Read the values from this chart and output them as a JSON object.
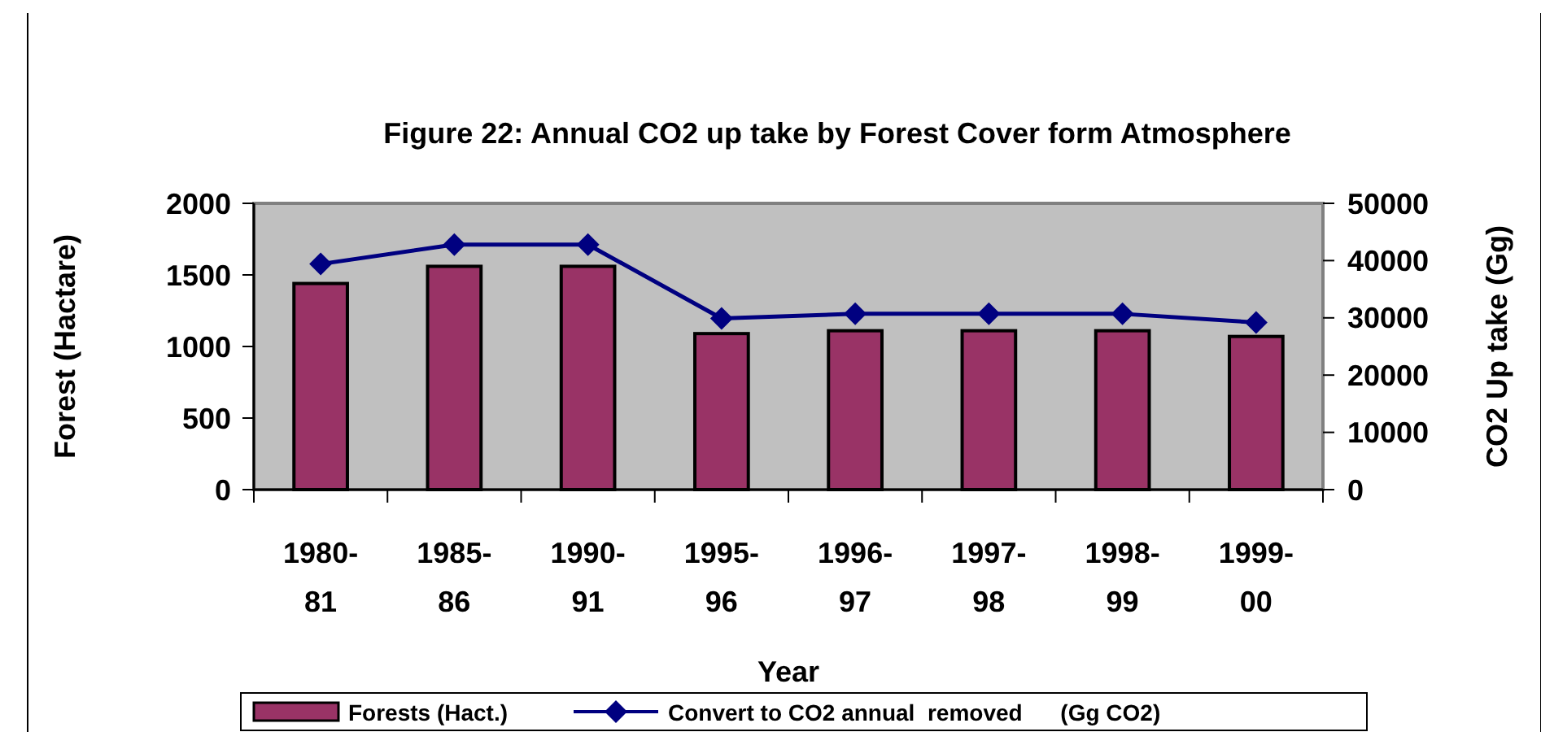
{
  "chart_data": {
    "type": "bar",
    "title": "Figure 22:  Annual CO2 up take by Forest Cover form Atmosphere",
    "xlabel": "Year",
    "ylabel": "Forest (Hactare)",
    "y2label": "CO2 Up take (Gg)",
    "categories": [
      "1980-81",
      "1985-86",
      "1990-91",
      "1995-96",
      "1996-97",
      "1997-98",
      "1998-99",
      "1999-00"
    ],
    "series": [
      {
        "name": "Forests (Hact.)",
        "color": "#993366",
        "values": [
          1440,
          1560,
          1560,
          1090,
          1110,
          1110,
          1110,
          1070
        ]
      },
      {
        "name": "Convert to CO2 annual  removed      (Gg CO2)",
        "type": "line",
        "axis": "y2",
        "color": "#000080",
        "marker": "diamond",
        "values": [
          39400,
          42800,
          42800,
          29900,
          30700,
          30700,
          30700,
          29200
        ]
      }
    ],
    "ylim": [
      0,
      2000
    ],
    "yticks": [
      0,
      500,
      1000,
      1500,
      2000
    ],
    "y2lim": [
      0,
      50000
    ],
    "y2ticks": [
      0,
      10000,
      20000,
      30000,
      40000,
      50000
    ],
    "grid": false,
    "legend": "bottom"
  }
}
